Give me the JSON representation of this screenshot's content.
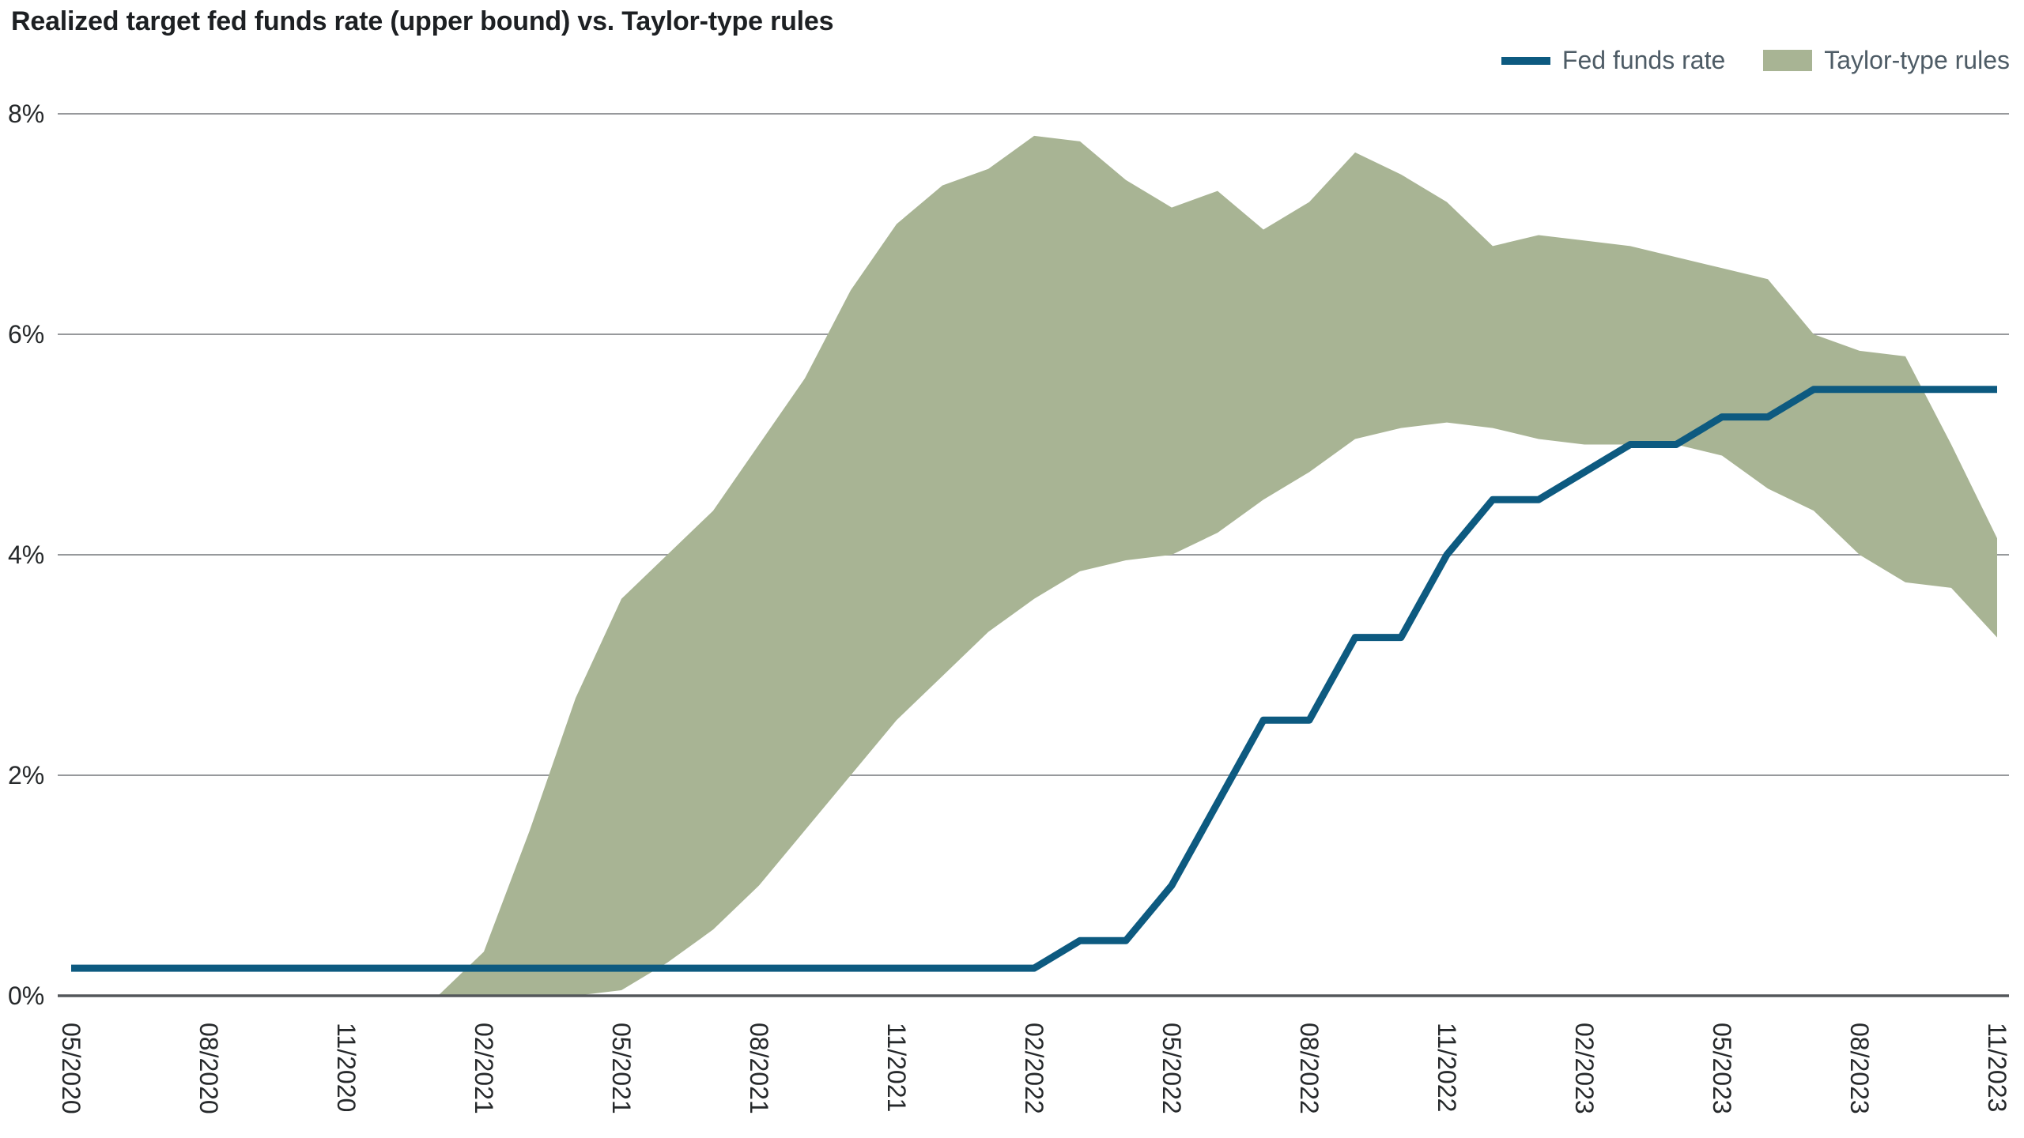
{
  "title": "Realized target fed funds rate (upper bound) vs. Taylor-type rules",
  "legend": [
    {
      "label": "Fed funds rate",
      "type": "line",
      "color": "#0d5a80"
    },
    {
      "label": "Taylor-type rules",
      "type": "band",
      "color": "#a8b494"
    }
  ],
  "colors": {
    "line": "#0d5a80",
    "band": "#a8b494",
    "grid": "#97999c",
    "axis": "#53575a",
    "tick_text": "#26292b",
    "legend_text": "#4e5c66",
    "title_text": "#1d2023",
    "background": "#ffffff"
  },
  "chart_data": {
    "type": "line",
    "title": "Realized target fed funds rate (upper bound) vs. Taylor-type rules",
    "xlabel": "",
    "ylabel": "",
    "ylim": [
      0,
      8
    ],
    "y_ticks": [
      "0%",
      "2%",
      "4%",
      "6%",
      "8%"
    ],
    "grid": "horizontal",
    "legend_position": "top-right",
    "x_tick_every": 3,
    "x": [
      "05/2020",
      "06/2020",
      "07/2020",
      "08/2020",
      "09/2020",
      "10/2020",
      "11/2020",
      "12/2020",
      "01/2021",
      "02/2021",
      "03/2021",
      "04/2021",
      "05/2021",
      "06/2021",
      "07/2021",
      "08/2021",
      "09/2021",
      "10/2021",
      "11/2021",
      "12/2021",
      "01/2022",
      "02/2022",
      "03/2022",
      "04/2022",
      "05/2022",
      "06/2022",
      "07/2022",
      "08/2022",
      "09/2022",
      "10/2022",
      "11/2022",
      "12/2022",
      "01/2023",
      "02/2023",
      "03/2023",
      "04/2023",
      "05/2023",
      "06/2023",
      "07/2023",
      "08/2023",
      "09/2023",
      "10/2023",
      "11/2023"
    ],
    "series": [
      {
        "name": "Fed funds rate",
        "type": "line",
        "color": "#0d5a80",
        "values": [
          0.25,
          0.25,
          0.25,
          0.25,
          0.25,
          0.25,
          0.25,
          0.25,
          0.25,
          0.25,
          0.25,
          0.25,
          0.25,
          0.25,
          0.25,
          0.25,
          0.25,
          0.25,
          0.25,
          0.25,
          0.25,
          0.25,
          0.5,
          0.5,
          1.0,
          1.75,
          2.5,
          2.5,
          3.25,
          3.25,
          4.0,
          4.5,
          4.5,
          4.75,
          5.0,
          5.0,
          5.25,
          5.25,
          5.5,
          5.5,
          5.5,
          5.5,
          5.5
        ]
      },
      {
        "name": "Taylor-type rules",
        "type": "band",
        "color": "#a8b494",
        "upper": [
          null,
          null,
          null,
          null,
          null,
          null,
          null,
          null,
          0.0,
          0.4,
          1.5,
          2.7,
          3.6,
          4.0,
          4.4,
          5.0,
          5.6,
          6.4,
          7.0,
          7.35,
          7.5,
          7.8,
          7.75,
          7.4,
          7.15,
          7.3,
          6.95,
          7.2,
          7.65,
          7.45,
          7.2,
          6.8,
          6.9,
          6.85,
          6.8,
          6.7,
          6.6,
          6.5,
          6.0,
          5.85,
          5.8,
          5.0,
          4.15
        ],
        "lower": [
          null,
          null,
          null,
          null,
          null,
          null,
          null,
          null,
          0.0,
          0.0,
          0.0,
          0.0,
          0.05,
          0.3,
          0.6,
          1.0,
          1.5,
          2.0,
          2.5,
          2.9,
          3.3,
          3.6,
          3.85,
          3.95,
          4.0,
          4.2,
          4.5,
          4.75,
          5.05,
          5.15,
          5.2,
          5.15,
          5.05,
          5.0,
          5.0,
          5.0,
          4.9,
          4.6,
          4.4,
          4.0,
          3.75,
          3.7,
          3.25
        ]
      }
    ]
  }
}
